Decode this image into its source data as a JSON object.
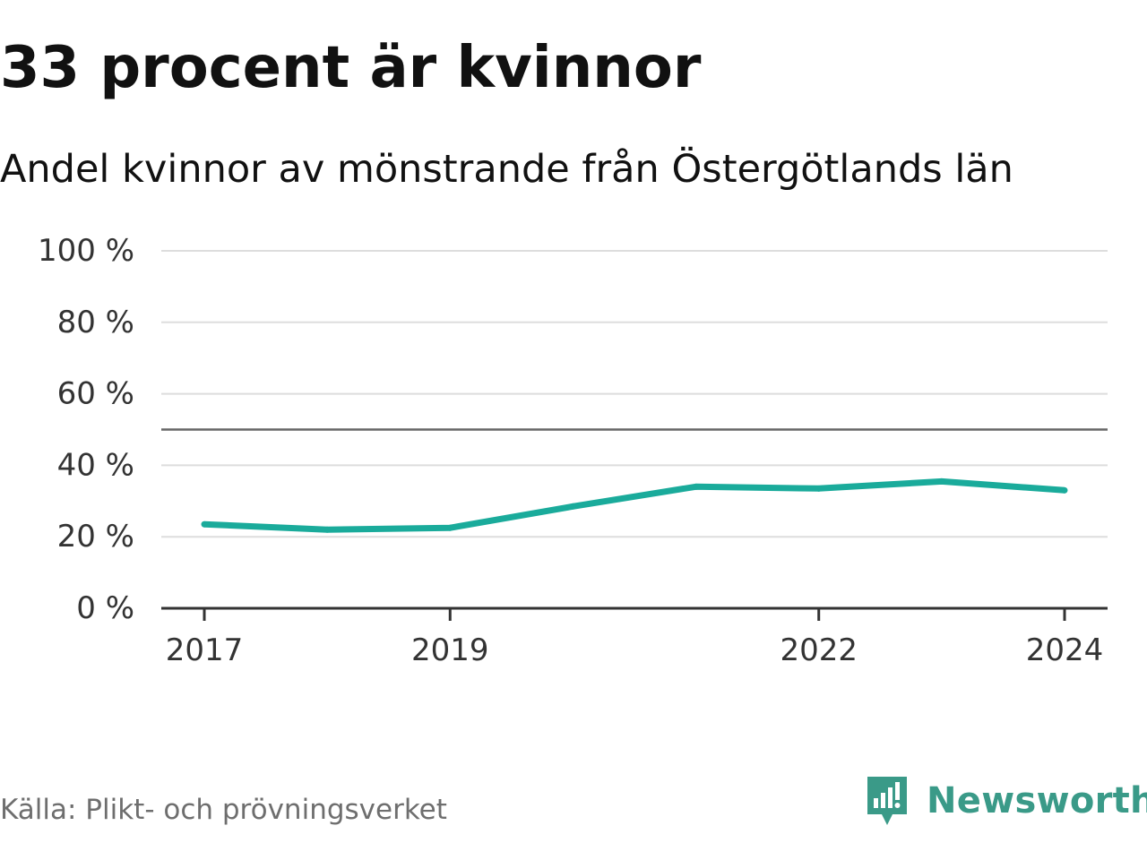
{
  "header": {
    "title": "33 procent är kvinnor",
    "subtitle": "Andel kvinnor av mönstrande från Östergötlands län"
  },
  "footer": {
    "source": "Källa: Plikt- och prövningsverket",
    "brand": "Newsworthy"
  },
  "colors": {
    "line": "#1aab9b",
    "reference": "#666666",
    "grid": "#dddddd",
    "axis": "#333333",
    "brand": "#3a9a88"
  },
  "chart_data": {
    "type": "line",
    "x_tick_labels": [
      "2017",
      "2019",
      "2022",
      "2024"
    ],
    "x_ticks": [
      2017,
      2019,
      2022,
      2024
    ],
    "y_tick_labels": [
      "0 %",
      "20 %",
      "40 %",
      "60 %",
      "80 %",
      "100 %"
    ],
    "y_ticks": [
      0,
      20,
      40,
      60,
      80,
      100
    ],
    "ylim": [
      0,
      100
    ],
    "xlim": [
      2016.65,
      2024.35
    ],
    "reference_line": 50,
    "grid": true,
    "series": [
      {
        "x": [
          2017,
          2018,
          2019,
          2020,
          2021,
          2022,
          2023,
          2024
        ],
        "values": [
          23.5,
          22,
          22.5,
          28.5,
          34,
          33.5,
          35.5,
          33
        ]
      }
    ]
  }
}
